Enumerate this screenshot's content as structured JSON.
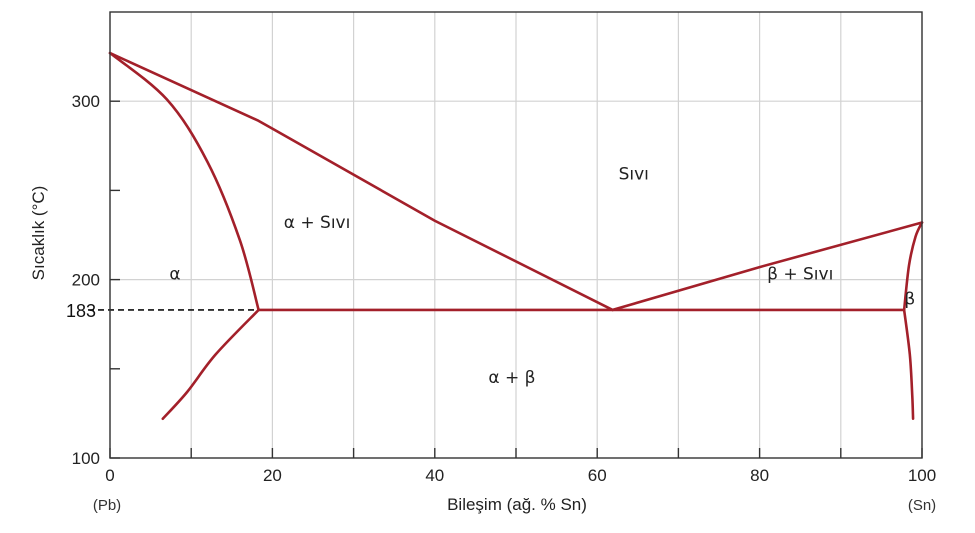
{
  "chart_data": {
    "type": "phase-diagram",
    "xlabel": "Bileşim (ağ. % Sn)",
    "ylabel": "Sıcaklık (°C)",
    "xlim": [
      0,
      100
    ],
    "ylim": [
      100,
      350
    ],
    "x_ticks": [
      0,
      20,
      40,
      60,
      80,
      100
    ],
    "x_minor_ticks": [
      10,
      30,
      50,
      70,
      90
    ],
    "y_ticks": [
      100,
      200,
      300
    ],
    "y_minor_ticks": [
      150,
      250
    ],
    "x_grid": [
      0,
      10,
      20,
      30,
      40,
      50,
      60,
      70,
      80,
      90,
      100
    ],
    "y_grid": [
      200,
      300
    ],
    "grid": true,
    "left_end_label": "(Pb)",
    "right_end_label": "(Sn)",
    "line_color": "#a3202a",
    "curves": [
      {
        "name": "liquidus-left",
        "points": [
          [
            0,
            327
          ],
          [
            18.3,
            289
          ],
          [
            40,
            233
          ],
          [
            61.9,
            183
          ]
        ]
      },
      {
        "name": "liquidus-right",
        "points": [
          [
            61.9,
            183
          ],
          [
            80,
            207
          ],
          [
            100,
            232
          ]
        ]
      },
      {
        "name": "solidus-alpha",
        "points": [
          [
            0,
            327
          ],
          [
            7,
            301
          ],
          [
            12,
            266
          ],
          [
            16,
            222
          ],
          [
            18.3,
            183
          ]
        ]
      },
      {
        "name": "solvus-alpha",
        "points": [
          [
            18.3,
            183
          ],
          [
            13,
            158
          ],
          [
            9.5,
            137
          ],
          [
            6.5,
            122
          ]
        ]
      },
      {
        "name": "solidus-beta",
        "points": [
          [
            97.8,
            183
          ],
          [
            98.4,
            208
          ],
          [
            99.2,
            224
          ],
          [
            100,
            232
          ]
        ]
      },
      {
        "name": "solvus-beta",
        "points": [
          [
            97.8,
            183
          ],
          [
            98.5,
            158
          ],
          [
            98.8,
            135
          ],
          [
            98.9,
            122
          ]
        ]
      },
      {
        "name": "eutectic-isotherm",
        "points": [
          [
            18.3,
            183
          ],
          [
            97.8,
            183
          ]
        ]
      }
    ],
    "eutectic_marker": {
      "label": "183",
      "value": 183,
      "line_x": [
        0,
        18.3
      ],
      "dashed": true
    },
    "regions": [
      {
        "label": "Sıvı",
        "x": 64.5,
        "y": 256
      },
      {
        "label": "α + Sıvı",
        "x": 25.5,
        "y": 229
      },
      {
        "label": "α",
        "x": 8,
        "y": 200
      },
      {
        "label": "β + Sıvı",
        "x": 85,
        "y": 200
      },
      {
        "label": "β",
        "x": 98.5,
        "y": 186
      },
      {
        "label": "α + β",
        "x": 49.5,
        "y": 142
      }
    ]
  }
}
